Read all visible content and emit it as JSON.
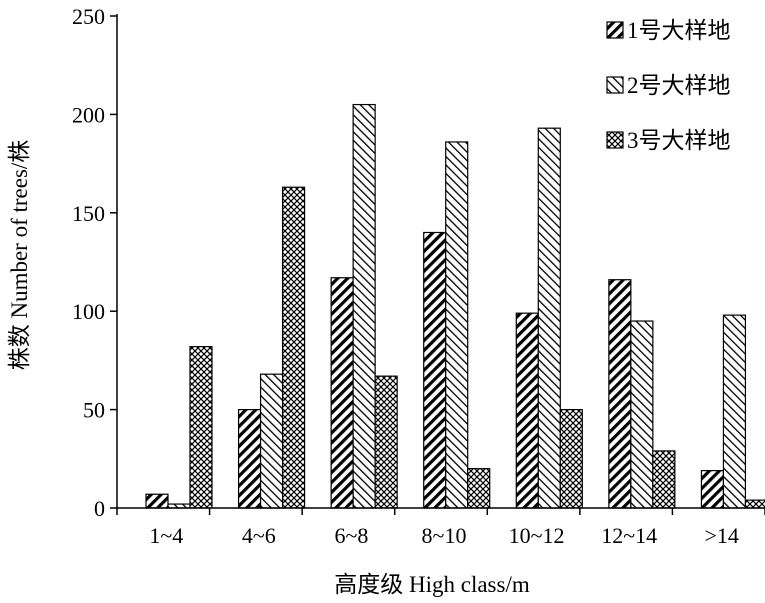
{
  "chart_data": {
    "type": "bar",
    "title": "",
    "xlabel": "高度级  High class/m",
    "ylabel": "株数  Number of trees/株",
    "categories": [
      "1~4",
      "4~6",
      "6~8",
      "8~10",
      "10~12",
      "12~14",
      ">14"
    ],
    "series": [
      {
        "name": "1号大样地",
        "values": [
          7,
          50,
          117,
          140,
          99,
          116,
          19
        ],
        "pattern": "dense-diagonal"
      },
      {
        "name": "2号大样地",
        "values": [
          2,
          68,
          205,
          186,
          193,
          95,
          98
        ],
        "pattern": "light-diagonal"
      },
      {
        "name": "3号大样地",
        "values": [
          82,
          163,
          67,
          20,
          50,
          29,
          4
        ],
        "pattern": "crosshatch"
      }
    ],
    "yticks": [
      0,
      50,
      100,
      150,
      200,
      250
    ],
    "ylim": [
      0,
      250
    ],
    "grid": false,
    "legend_position": "top-right",
    "colors": {
      "axis": "#000000",
      "fill": "#000000",
      "background": "#ffffff"
    }
  }
}
